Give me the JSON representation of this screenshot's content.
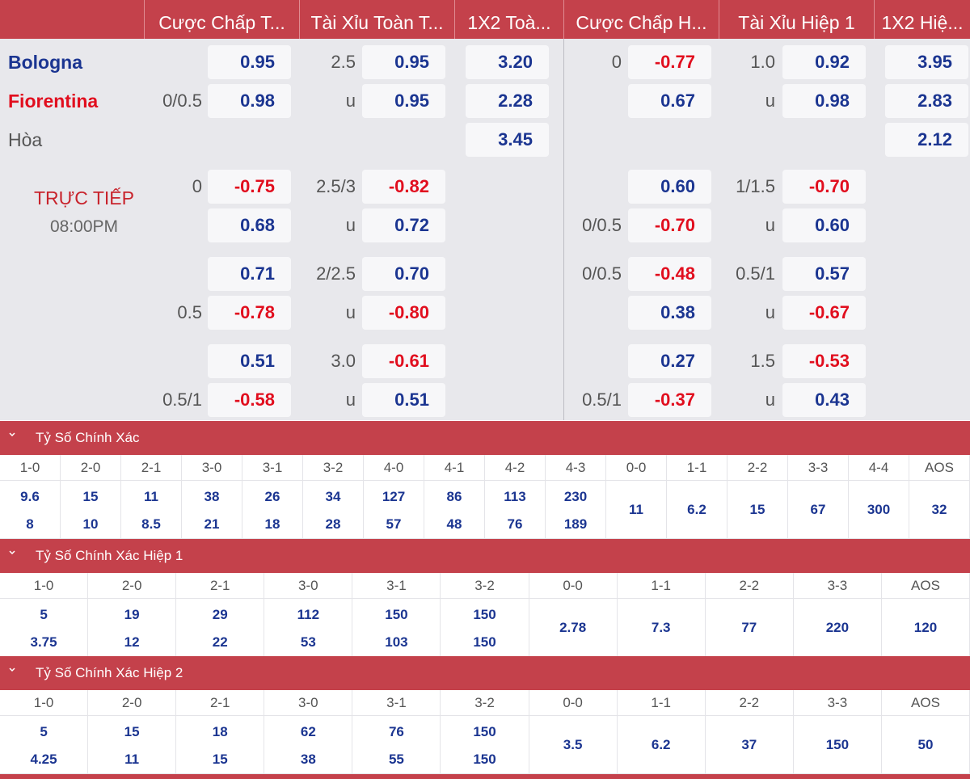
{
  "headers": [
    "Cược Chấp T...",
    "Tài Xỉu Toàn T...",
    "1X2 Toà...",
    "Cược Chấp H...",
    "Tài Xỉu Hiệp 1",
    "1X2 Hiệ..."
  ],
  "teams": {
    "home": "Bologna",
    "away": "Fiorentina",
    "draw": "Hòa"
  },
  "live": {
    "status": "TRỰC TIẾP",
    "time": "08:00PM"
  },
  "colors": {
    "header_bg": "#c4414b",
    "positive": "#1b3591",
    "negative": "#e10e1e",
    "home_team": "#1b3591",
    "away_team": "#e10e1e"
  },
  "main": {
    "ah_ft": {
      "home_line": "",
      "away_line": "0/0.5",
      "home": "0.95",
      "away": "0.98"
    },
    "ou_ft": {
      "line": "2.5",
      "u": "u",
      "over": "0.95",
      "under": "0.95"
    },
    "x12_ft": {
      "home": "3.20",
      "away": "2.28",
      "draw": "3.45"
    },
    "ah_1h": {
      "home_line": "0",
      "away_line": "",
      "home": "-0.77",
      "away": "0.67"
    },
    "ou_1h": {
      "line": "1.0",
      "u": "u",
      "over": "0.92",
      "under": "0.98"
    },
    "x12_1h": {
      "home": "3.95",
      "away": "2.83",
      "draw": "2.12"
    }
  },
  "alt": [
    {
      "ah_ft": {
        "l1": "0",
        "l2": "",
        "v1": "-0.75",
        "v2": "0.68"
      },
      "ou_ft": {
        "l1": "2.5/3",
        "l2": "u",
        "v1": "-0.82",
        "v2": "0.72"
      },
      "ah_1h": {
        "l1": "",
        "l2": "0/0.5",
        "v1": "0.60",
        "v2": "-0.70"
      },
      "ou_1h": {
        "l1": "1/1.5",
        "l2": "u",
        "v1": "-0.70",
        "v2": "0.60"
      }
    },
    {
      "ah_ft": {
        "l1": "",
        "l2": "0.5",
        "v1": "0.71",
        "v2": "-0.78"
      },
      "ou_ft": {
        "l1": "2/2.5",
        "l2": "u",
        "v1": "0.70",
        "v2": "-0.80"
      },
      "ah_1h": {
        "l1": "0/0.5",
        "l2": "",
        "v1": "-0.48",
        "v2": "0.38"
      },
      "ou_1h": {
        "l1": "0.5/1",
        "l2": "u",
        "v1": "0.57",
        "v2": "-0.67"
      }
    },
    {
      "ah_ft": {
        "l1": "",
        "l2": "0.5/1",
        "v1": "0.51",
        "v2": "-0.58"
      },
      "ou_ft": {
        "l1": "3.0",
        "l2": "u",
        "v1": "-0.61",
        "v2": "0.51"
      },
      "ah_1h": {
        "l1": "",
        "l2": "0.5/1",
        "v1": "0.27",
        "v2": "-0.37"
      },
      "ou_1h": {
        "l1": "1.5",
        "l2": "u",
        "v1": "-0.53",
        "v2": "0.43"
      }
    }
  ],
  "correct_score": [
    {
      "title": "Tỷ Số Chính Xác",
      "cols": [
        {
          "score": "1-0",
          "home": "9.6",
          "away": "8"
        },
        {
          "score": "2-0",
          "home": "15",
          "away": "10"
        },
        {
          "score": "2-1",
          "home": "11",
          "away": "8.5"
        },
        {
          "score": "3-0",
          "home": "38",
          "away": "21"
        },
        {
          "score": "3-1",
          "home": "26",
          "away": "18"
        },
        {
          "score": "3-2",
          "home": "34",
          "away": "28"
        },
        {
          "score": "4-0",
          "home": "127",
          "away": "57"
        },
        {
          "score": "4-1",
          "home": "86",
          "away": "48"
        },
        {
          "score": "4-2",
          "home": "113",
          "away": "76"
        },
        {
          "score": "4-3",
          "home": "230",
          "away": "189"
        },
        {
          "score": "0-0",
          "single": "11"
        },
        {
          "score": "1-1",
          "single": "6.2"
        },
        {
          "score": "2-2",
          "single": "15"
        },
        {
          "score": "3-3",
          "single": "67"
        },
        {
          "score": "4-4",
          "single": "300"
        },
        {
          "score": "AOS",
          "single": "32"
        }
      ]
    },
    {
      "title": "Tỷ Số Chính Xác Hiệp 1",
      "cols": [
        {
          "score": "1-0",
          "home": "5",
          "away": "3.75"
        },
        {
          "score": "2-0",
          "home": "19",
          "away": "12"
        },
        {
          "score": "2-1",
          "home": "29",
          "away": "22"
        },
        {
          "score": "3-0",
          "home": "112",
          "away": "53"
        },
        {
          "score": "3-1",
          "home": "150",
          "away": "103"
        },
        {
          "score": "3-2",
          "home": "150",
          "away": "150"
        },
        {
          "score": "0-0",
          "single": "2.78"
        },
        {
          "score": "1-1",
          "single": "7.3"
        },
        {
          "score": "2-2",
          "single": "77"
        },
        {
          "score": "3-3",
          "single": "220"
        },
        {
          "score": "AOS",
          "single": "120"
        }
      ]
    },
    {
      "title": "Tỷ Số Chính Xác Hiệp 2",
      "cols": [
        {
          "score": "1-0",
          "home": "5",
          "away": "4.25"
        },
        {
          "score": "2-0",
          "home": "15",
          "away": "11"
        },
        {
          "score": "2-1",
          "home": "18",
          "away": "15"
        },
        {
          "score": "3-0",
          "home": "62",
          "away": "38"
        },
        {
          "score": "3-1",
          "home": "76",
          "away": "55"
        },
        {
          "score": "3-2",
          "home": "150",
          "away": "150"
        },
        {
          "score": "0-0",
          "single": "3.5"
        },
        {
          "score": "1-1",
          "single": "6.2"
        },
        {
          "score": "2-2",
          "single": "37"
        },
        {
          "score": "3-3",
          "single": "150"
        },
        {
          "score": "AOS",
          "single": "50"
        }
      ]
    }
  ]
}
